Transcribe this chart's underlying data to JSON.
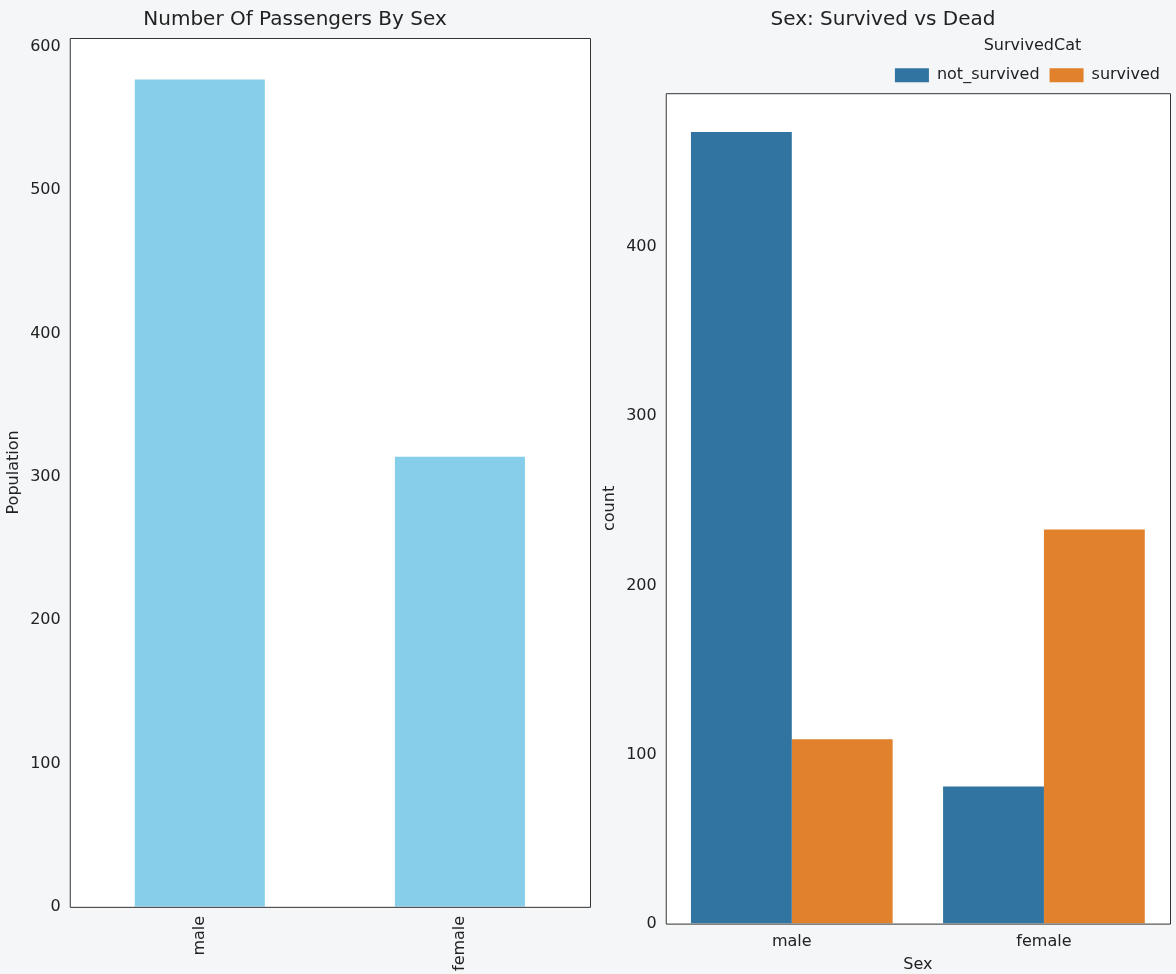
{
  "chart_data": [
    {
      "type": "bar",
      "title": "Number Of Passengers By Sex",
      "ylabel": "Population",
      "categories": [
        "male",
        "female"
      ],
      "values": [
        577,
        314
      ],
      "color": "#87ceeb",
      "ylim": [
        0,
        606
      ],
      "yticks": [
        0,
        100,
        200,
        300,
        400,
        500,
        600
      ],
      "grid": false,
      "legend": false
    },
    {
      "type": "bar",
      "title": "Sex: Survived vs Dead",
      "xlabel": "Sex",
      "ylabel": "count",
      "legend_title": "SurvivedCat",
      "categories": [
        "male",
        "female"
      ],
      "series": [
        {
          "name": "not_survived",
          "color": "#3274a1",
          "values": [
            468,
            81
          ]
        },
        {
          "name": "survived",
          "color": "#e1812c",
          "values": [
            109,
            233
          ]
        }
      ],
      "ylim": [
        0,
        491
      ],
      "yticks": [
        0,
        100,
        200,
        300,
        400
      ],
      "grid": false,
      "legend": "top right"
    }
  ]
}
